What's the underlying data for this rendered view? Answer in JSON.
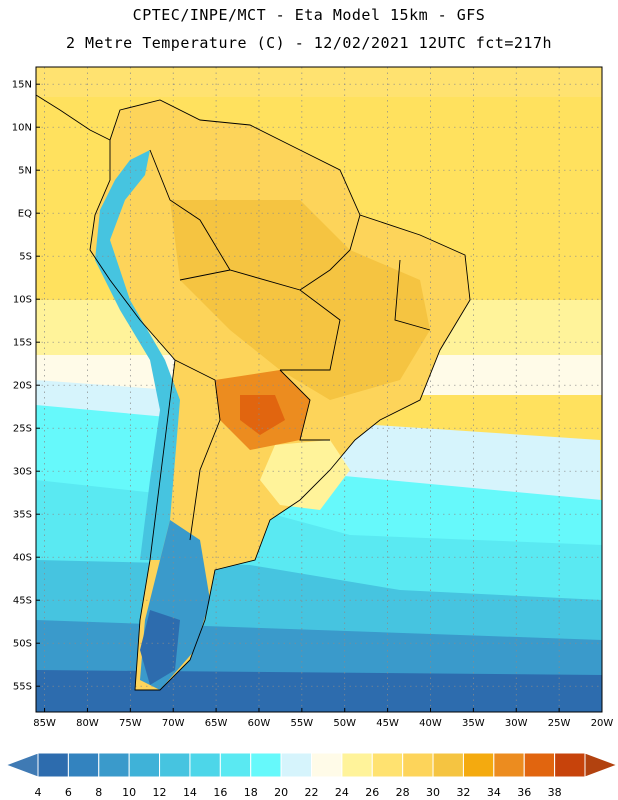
{
  "title": {
    "line1": "CPTEC/INPE/MCT -  Eta Model 15km - GFS",
    "line2": "2 Metre Temperature (C) - 12/02/2021 12UTC fct=217h"
  },
  "axes": {
    "lat_labels": [
      "15N",
      "10N",
      "5N",
      "EQ",
      "5S",
      "10S",
      "15S",
      "20S",
      "25S",
      "30S",
      "35S",
      "40S",
      "45S",
      "50S",
      "55S"
    ],
    "lat_values": [
      15,
      10,
      5,
      0,
      -5,
      -10,
      -15,
      -20,
      -25,
      -30,
      -35,
      -40,
      -45,
      -50,
      -55
    ],
    "lon_labels": [
      "85W",
      "80W",
      "75W",
      "70W",
      "65W",
      "60W",
      "55W",
      "50W",
      "45W",
      "40W",
      "35W",
      "30W",
      "25W",
      "20W"
    ],
    "lon_values": [
      -85,
      -80,
      -75,
      -70,
      -65,
      -60,
      -55,
      -50,
      -45,
      -40,
      -35,
      -30,
      -25,
      -20
    ],
    "lon_range": [
      -86,
      -20
    ],
    "lat_range": [
      -58,
      17
    ]
  },
  "colorbar": {
    "labels": [
      "4",
      "6",
      "8",
      "10",
      "12",
      "14",
      "16",
      "18",
      "20",
      "22",
      "24",
      "26",
      "28",
      "30",
      "32",
      "34",
      "36",
      "38"
    ],
    "colors": [
      "#2d6cae",
      "#3383bf",
      "#3a9acb",
      "#3fb2d8",
      "#46c4e0",
      "#4dd6e9",
      "#5ae9f2",
      "#66f9fb",
      "#d6f4fc",
      "#fffbe8",
      "#fff39a",
      "#ffe270",
      "#fdd45a",
      "#f5c441",
      "#f4aa0f",
      "#ec8c1f",
      "#e1650f",
      "#c7430b"
    ],
    "low_color": "#3f7ab4",
    "high_color": "#b2420f"
  },
  "fields": {
    "ocean_base": "#ffe15e",
    "land_base": "#fbcd4f",
    "border_color": "#000000",
    "grid_color": "#8a8a8a"
  }
}
